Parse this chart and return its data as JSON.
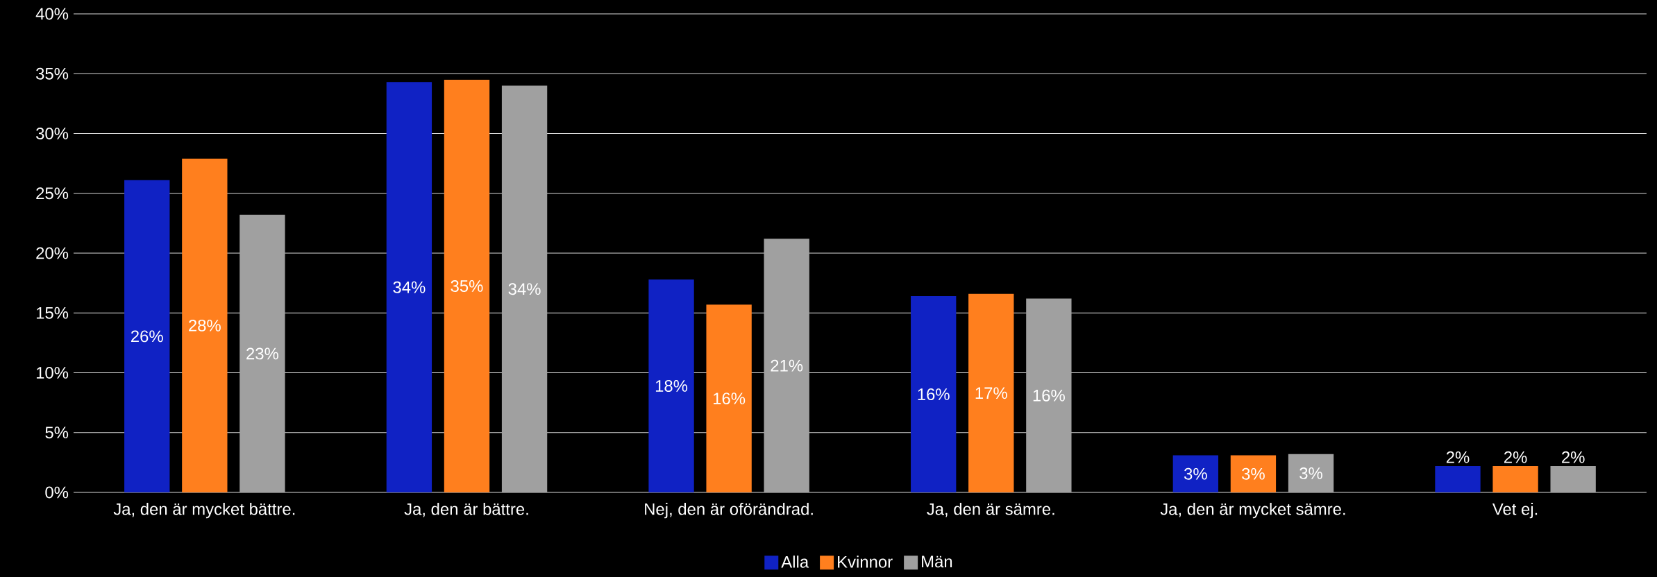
{
  "chart_data": {
    "type": "bar",
    "categories": [
      "Ja, den är mycket bättre.",
      "Ja, den är bättre.",
      "Nej, den är oförändrad.",
      "Ja, den är sämre.",
      "Ja, den är mycket sämre.",
      "Vet ej."
    ],
    "series": [
      {
        "name": "Alla",
        "color": "#1022c4",
        "values": [
          26.1,
          34.3,
          17.8,
          16.4,
          3.1,
          2.2
        ],
        "value_labels": [
          "26%",
          "34%",
          "18%",
          "16%",
          "3%",
          "2%"
        ]
      },
      {
        "name": "Kvinnor",
        "color": "#ff7f1e",
        "values": [
          27.9,
          34.5,
          15.7,
          16.6,
          3.1,
          2.2
        ],
        "value_labels": [
          "28%",
          "35%",
          "16%",
          "17%",
          "3%",
          "2%"
        ]
      },
      {
        "name": "Män",
        "color": "#a0a0a0",
        "values": [
          23.2,
          34.0,
          21.2,
          16.2,
          3.2,
          2.2
        ],
        "value_labels": [
          "23%",
          "34%",
          "21%",
          "16%",
          "3%",
          "2%"
        ]
      }
    ],
    "ylim": [
      0,
      40
    ],
    "yticks": [
      {
        "value": 0,
        "label": "0%"
      },
      {
        "value": 5,
        "label": "5%"
      },
      {
        "value": 10,
        "label": "10%"
      },
      {
        "value": 15,
        "label": "15%"
      },
      {
        "value": 20,
        "label": "20%"
      },
      {
        "value": 25,
        "label": "25%"
      },
      {
        "value": 30,
        "label": "30%"
      },
      {
        "value": 35,
        "label": "35%"
      },
      {
        "value": 40,
        "label": "40%"
      }
    ],
    "grid": "y",
    "legend": "bottom"
  }
}
